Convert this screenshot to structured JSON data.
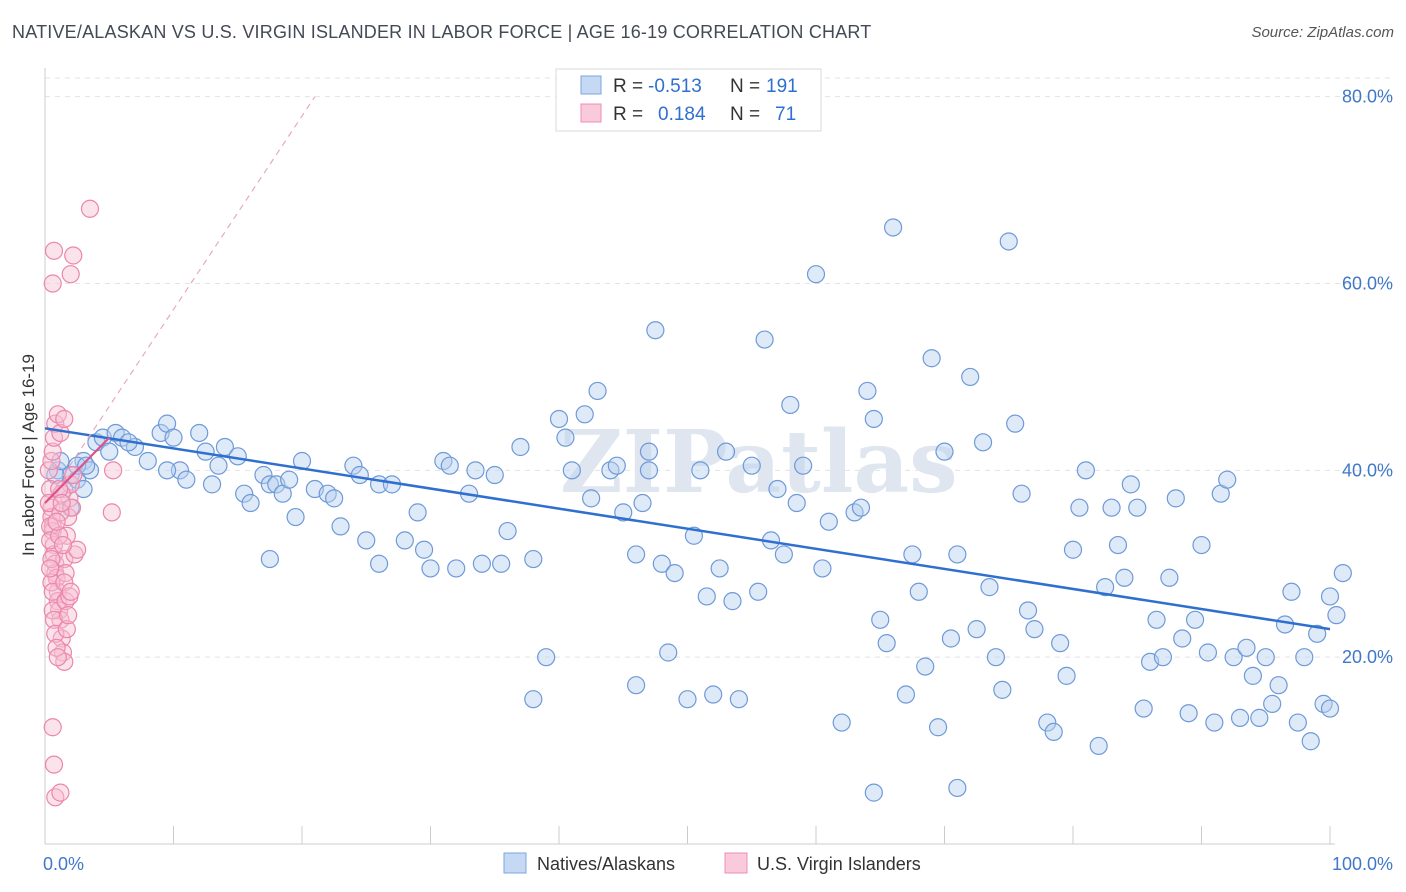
{
  "title": "NATIVE/ALASKAN VS U.S. VIRGIN ISLANDER IN LABOR FORCE | AGE 16-19 CORRELATION CHART",
  "source": "Source: ZipAtlas.com",
  "watermark": "ZIPatlas",
  "colors": {
    "blue": "#7aa7e0",
    "blue_line": "#2f6fd0",
    "pink": "#f08db0",
    "pink_line": "#e0508a"
  },
  "legend_box": [
    {
      "r_label": "R =",
      "r_value": "-0.513",
      "n_label": "N =",
      "n_value": "191",
      "color": "blue"
    },
    {
      "r_label": "R =",
      "r_value": "0.184",
      "n_label": "N =",
      "n_value": "71",
      "color": "pink"
    }
  ],
  "chart_data": {
    "type": "scatter",
    "title": "NATIVE/ALASKAN VS U.S. VIRGIN ISLANDER IN LABOR FORCE | AGE 16-19 CORRELATION CHART",
    "xlabel": "",
    "ylabel": "In Labor Force | Age 16-19",
    "xlim": [
      0,
      100
    ],
    "ylim": [
      0,
      82
    ],
    "x_tick_labels": [
      "0.0%",
      "100.0%"
    ],
    "y_ticks": [
      20,
      40,
      60,
      80
    ],
    "y_tick_labels": [
      "20.0%",
      "40.0%",
      "60.0%",
      "80.0%"
    ],
    "grid": true,
    "legend": "bottom-center",
    "series": [
      {
        "name": "Natives/Alaskans",
        "color": "#7aa7e0",
        "trend": {
          "x": [
            0,
            100
          ],
          "y": [
            44.5,
            23.0
          ]
        },
        "points": [
          [
            1,
            40
          ],
          [
            1.5,
            38
          ],
          [
            2,
            36
          ],
          [
            2,
            39.5
          ],
          [
            2.5,
            39
          ],
          [
            3,
            41
          ],
          [
            3.5,
            40
          ],
          [
            4,
            43
          ],
          [
            4.5,
            43.5
          ],
          [
            5,
            42
          ],
          [
            5.5,
            44
          ],
          [
            6,
            43.5
          ],
          [
            7,
            42.5
          ],
          [
            8,
            41
          ],
          [
            9,
            44
          ],
          [
            9.5,
            45
          ],
          [
            10,
            43.5
          ],
          [
            10.5,
            40
          ],
          [
            11,
            39
          ],
          [
            12,
            44
          ],
          [
            12.5,
            42
          ],
          [
            13,
            38.5
          ],
          [
            13.5,
            40.5
          ],
          [
            14,
            42.5
          ],
          [
            15,
            41.5
          ],
          [
            15.5,
            37.5
          ],
          [
            16,
            36.5
          ],
          [
            17,
            39.5
          ],
          [
            17.5,
            38.5
          ],
          [
            18,
            38.5
          ],
          [
            18.5,
            37.5
          ],
          [
            19,
            39
          ],
          [
            19.5,
            35
          ],
          [
            20,
            41
          ],
          [
            21,
            38
          ],
          [
            22,
            37.5
          ],
          [
            22.5,
            37
          ],
          [
            23,
            34
          ],
          [
            24,
            40.5
          ],
          [
            24.5,
            39.5
          ],
          [
            25,
            32.5
          ],
          [
            26,
            38.5
          ],
          [
            27,
            38.5
          ],
          [
            28,
            32.5
          ],
          [
            29,
            35.5
          ],
          [
            29.5,
            31.5
          ],
          [
            30,
            29.5
          ],
          [
            31,
            41
          ],
          [
            31.5,
            40.5
          ],
          [
            32,
            29.5
          ],
          [
            33,
            37.5
          ],
          [
            33.5,
            40
          ],
          [
            34,
            30
          ],
          [
            35,
            39.5
          ],
          [
            35.5,
            30
          ],
          [
            36,
            33.5
          ],
          [
            37,
            42.5
          ],
          [
            38,
            15.5
          ],
          [
            39,
            20
          ],
          [
            40,
            45.5
          ],
          [
            40.5,
            43.5
          ],
          [
            41,
            40
          ],
          [
            42,
            46
          ],
          [
            42.5,
            37
          ],
          [
            43,
            48.5
          ],
          [
            44,
            40
          ],
          [
            44.5,
            40.5
          ],
          [
            45,
            35.5
          ],
          [
            46,
            17
          ],
          [
            46.5,
            36.5
          ],
          [
            47,
            40
          ],
          [
            47.5,
            55
          ],
          [
            48,
            30
          ],
          [
            48.5,
            20.5
          ],
          [
            49,
            29
          ],
          [
            50,
            15.5
          ],
          [
            50.5,
            33
          ],
          [
            51,
            40
          ],
          [
            51.5,
            26.5
          ],
          [
            52,
            16
          ],
          [
            52.5,
            29.5
          ],
          [
            53,
            42
          ],
          [
            53.5,
            26
          ],
          [
            54,
            15.5
          ],
          [
            55,
            40.5
          ],
          [
            55.5,
            27
          ],
          [
            56,
            54
          ],
          [
            56.5,
            32.5
          ],
          [
            57,
            38
          ],
          [
            57.5,
            31
          ],
          [
            58,
            47
          ],
          [
            58.5,
            36.5
          ],
          [
            59,
            40.5
          ],
          [
            60,
            61
          ],
          [
            60.5,
            29.5
          ],
          [
            61,
            34.5
          ],
          [
            62,
            13
          ],
          [
            63,
            35.5
          ],
          [
            63.5,
            36
          ],
          [
            64,
            48.5
          ],
          [
            64.5,
            45.5
          ],
          [
            65,
            24
          ],
          [
            65.5,
            21.5
          ],
          [
            66,
            66
          ],
          [
            67,
            16
          ],
          [
            67.5,
            31
          ],
          [
            68,
            27
          ],
          [
            68.5,
            19
          ],
          [
            69,
            52
          ],
          [
            69.5,
            12.5
          ],
          [
            70,
            42
          ],
          [
            70.5,
            22
          ],
          [
            71,
            31
          ],
          [
            72,
            50
          ],
          [
            72.5,
            23
          ],
          [
            73,
            43
          ],
          [
            73.5,
            27.5
          ],
          [
            74,
            20
          ],
          [
            74.5,
            16.5
          ],
          [
            75,
            64.5
          ],
          [
            75.5,
            45
          ],
          [
            76,
            37.5
          ],
          [
            76.5,
            25
          ],
          [
            77,
            23
          ],
          [
            78,
            13
          ],
          [
            78.5,
            12
          ],
          [
            79,
            21.5
          ],
          [
            79.5,
            18
          ],
          [
            80,
            31.5
          ],
          [
            80.5,
            36
          ],
          [
            81,
            40
          ],
          [
            82,
            10.5
          ],
          [
            82.5,
            27.5
          ],
          [
            83,
            36
          ],
          [
            83.5,
            32
          ],
          [
            84,
            28.5
          ],
          [
            84.5,
            38.5
          ],
          [
            85,
            36
          ],
          [
            85.5,
            14.5
          ],
          [
            86,
            19.5
          ],
          [
            86.5,
            24
          ],
          [
            87,
            20
          ],
          [
            87.5,
            28.5
          ],
          [
            88,
            37
          ],
          [
            88.5,
            22
          ],
          [
            89,
            14
          ],
          [
            89.5,
            24
          ],
          [
            90,
            32
          ],
          [
            90.5,
            20.5
          ],
          [
            91,
            13
          ],
          [
            91.5,
            37.5
          ],
          [
            92,
            39
          ],
          [
            92.5,
            20
          ],
          [
            93,
            13.5
          ],
          [
            93.5,
            21
          ],
          [
            94,
            18
          ],
          [
            94.5,
            13.5
          ],
          [
            95,
            20
          ],
          [
            95.5,
            15
          ],
          [
            96,
            17
          ],
          [
            96.5,
            23.5
          ],
          [
            97,
            27
          ],
          [
            97.5,
            13
          ],
          [
            98,
            20
          ],
          [
            98.5,
            11
          ],
          [
            99,
            22.5
          ],
          [
            99.5,
            15
          ],
          [
            100,
            14.5
          ],
          [
            100,
            26.5
          ],
          [
            100.5,
            24.5
          ],
          [
            101,
            29
          ],
          [
            64.5,
            5.5
          ],
          [
            71,
            6
          ],
          [
            46,
            31
          ],
          [
            38,
            30.5
          ],
          [
            47,
            42
          ],
          [
            9.5,
            40
          ],
          [
            6.5,
            43
          ],
          [
            26,
            30
          ],
          [
            17.5,
            30.5
          ],
          [
            2.5,
            40.5
          ],
          [
            3,
            38
          ],
          [
            3.2,
            40.5
          ],
          [
            0.8,
            39.5
          ],
          [
            1.2,
            41
          ]
        ]
      },
      {
        "name": "U.S. Virgin Islanders",
        "color": "#f08db0",
        "trend": {
          "x": [
            0,
            5
          ],
          "y": [
            36.5,
            43.5
          ]
        },
        "trend_extended": {
          "x": [
            0,
            21
          ],
          "y": [
            36.5,
            80
          ]
        },
        "points": [
          [
            0.3,
            40
          ],
          [
            0.4,
            38
          ],
          [
            0.5,
            36
          ],
          [
            0.5,
            35
          ],
          [
            0.6,
            34
          ],
          [
            0.6,
            33.5
          ],
          [
            0.7,
            32
          ],
          [
            0.7,
            31
          ],
          [
            0.8,
            30
          ],
          [
            0.8,
            29
          ],
          [
            0.9,
            28.5
          ],
          [
            1,
            27
          ],
          [
            1,
            26
          ],
          [
            1.1,
            25
          ],
          [
            1.2,
            24
          ],
          [
            1.3,
            22
          ],
          [
            1.4,
            20.5
          ],
          [
            1.5,
            19.5
          ],
          [
            1.5,
            30.5
          ],
          [
            1.6,
            29
          ],
          [
            1.7,
            33
          ],
          [
            1.8,
            35
          ],
          [
            1.9,
            37
          ],
          [
            2,
            38.5
          ],
          [
            2.1,
            36
          ],
          [
            2.2,
            39.5
          ],
          [
            0.5,
            41
          ],
          [
            0.6,
            42
          ],
          [
            0.7,
            43.5
          ],
          [
            0.8,
            45
          ],
          [
            1,
            46
          ],
          [
            1.2,
            44
          ],
          [
            1.5,
            45.5
          ],
          [
            0.6,
            60
          ],
          [
            0.7,
            63.5
          ],
          [
            2,
            61
          ],
          [
            2.2,
            63
          ],
          [
            3.5,
            68
          ],
          [
            0.6,
            12.5
          ],
          [
            0.7,
            8.5
          ],
          [
            0.8,
            5
          ],
          [
            1.2,
            5.5
          ],
          [
            2.3,
            31
          ],
          [
            2.5,
            31.5
          ],
          [
            5.3,
            40
          ],
          [
            5.2,
            35.5
          ],
          [
            0.3,
            36.5
          ],
          [
            0.4,
            34
          ],
          [
            0.4,
            32.5
          ],
          [
            0.5,
            30.5
          ],
          [
            0.5,
            28
          ],
          [
            0.6,
            27
          ],
          [
            0.6,
            25
          ],
          [
            0.7,
            24
          ],
          [
            0.8,
            22.5
          ],
          [
            0.9,
            21
          ],
          [
            1,
            20
          ],
          [
            1.1,
            33
          ],
          [
            1.2,
            35.5
          ],
          [
            1.3,
            37.5
          ],
          [
            1.4,
            32
          ],
          [
            1.5,
            28
          ],
          [
            1.6,
            26
          ],
          [
            1.7,
            23
          ],
          [
            1.8,
            24.5
          ],
          [
            1.9,
            26.5
          ],
          [
            2,
            27
          ],
          [
            0.9,
            34.5
          ],
          [
            1.1,
            38
          ],
          [
            1.3,
            36.5
          ],
          [
            0.4,
            29.5
          ]
        ]
      }
    ]
  }
}
